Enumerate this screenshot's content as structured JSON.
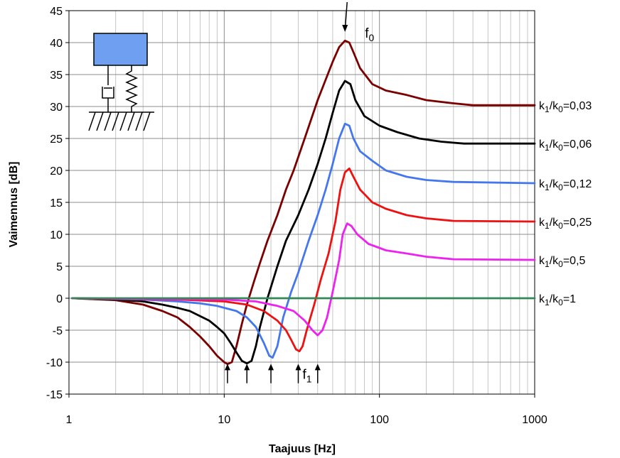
{
  "chart_data": {
    "type": "line",
    "title": "",
    "xlabel": "Taajuus [Hz]",
    "ylabel": "Vaimennus [dB]",
    "xscale": "log",
    "xlim": [
      1,
      1000
    ],
    "ylim": [
      -15,
      45
    ],
    "grid": true,
    "x_ticks": [
      "1",
      "10",
      "100",
      "1000"
    ],
    "y_ticks": [
      "45",
      "40",
      "35",
      "30",
      "25",
      "20",
      "15",
      "10",
      "5",
      "0",
      "-5",
      "-10",
      "-15"
    ],
    "series": [
      {
        "name": "k1/k0=0,03",
        "label_base": "k",
        "label_sub1": "1",
        "label_mid": "/k",
        "label_sub2": "0",
        "label_tail": "=0,03",
        "color": "#7b0000",
        "points": [
          [
            1.05,
            0
          ],
          [
            2,
            -0.3
          ],
          [
            3,
            -1
          ],
          [
            4,
            -2
          ],
          [
            5,
            -3
          ],
          [
            6,
            -4.5
          ],
          [
            7,
            -6
          ],
          [
            8,
            -7.5
          ],
          [
            9,
            -9
          ],
          [
            10,
            -10
          ],
          [
            10.5,
            -10.3
          ],
          [
            11.2,
            -10
          ],
          [
            12,
            -7.5
          ],
          [
            13,
            -4
          ],
          [
            14,
            -1
          ],
          [
            15.5,
            2.5
          ],
          [
            17,
            5.5
          ],
          [
            19,
            9
          ],
          [
            22,
            13
          ],
          [
            25,
            17
          ],
          [
            28,
            20
          ],
          [
            33,
            25
          ],
          [
            40,
            31
          ],
          [
            50,
            37
          ],
          [
            55,
            39.3
          ],
          [
            60,
            40.3
          ],
          [
            64,
            40
          ],
          [
            68,
            38.5
          ],
          [
            75,
            36
          ],
          [
            90,
            33.5
          ],
          [
            110,
            32.5
          ],
          [
            150,
            31.8
          ],
          [
            200,
            31
          ],
          [
            300,
            30.5
          ],
          [
            400,
            30.2
          ],
          [
            1000,
            30.2
          ]
        ]
      },
      {
        "name": "k1/k0=0,06",
        "label_base": "k",
        "label_sub1": "1",
        "label_mid": "/k",
        "label_sub2": "0",
        "label_tail": "=0,06",
        "color": "#000000",
        "points": [
          [
            1.05,
            0
          ],
          [
            2,
            -0.2
          ],
          [
            3,
            -0.5
          ],
          [
            4,
            -1
          ],
          [
            5,
            -1.5
          ],
          [
            6,
            -2
          ],
          [
            7,
            -2.8
          ],
          [
            8,
            -3.5
          ],
          [
            9,
            -4.5
          ],
          [
            10,
            -5.5
          ],
          [
            11,
            -7
          ],
          [
            12,
            -8.5
          ],
          [
            13,
            -9.8
          ],
          [
            14,
            -10.2
          ],
          [
            15,
            -9.8
          ],
          [
            16,
            -7.5
          ],
          [
            17,
            -4.5
          ],
          [
            19,
            0
          ],
          [
            22,
            5
          ],
          [
            25,
            9
          ],
          [
            30,
            13
          ],
          [
            35,
            17
          ],
          [
            40,
            21
          ],
          [
            45,
            25
          ],
          [
            50,
            29
          ],
          [
            55,
            32.5
          ],
          [
            60,
            34
          ],
          [
            65,
            33.5
          ],
          [
            70,
            31
          ],
          [
            80,
            28.5
          ],
          [
            100,
            27
          ],
          [
            130,
            26
          ],
          [
            180,
            25
          ],
          [
            250,
            24.5
          ],
          [
            350,
            24.2
          ],
          [
            1000,
            24.2
          ]
        ]
      },
      {
        "name": "k1/k0=0,12",
        "label_base": "k",
        "label_sub1": "1",
        "label_mid": "/k",
        "label_sub2": "0",
        "label_tail": "=0,12",
        "color": "#4477ee",
        "points": [
          [
            1.05,
            0
          ],
          [
            3,
            -0.2
          ],
          [
            5,
            -0.5
          ],
          [
            7,
            -0.8
          ],
          [
            9,
            -1.2
          ],
          [
            10,
            -1.5
          ],
          [
            12,
            -2
          ],
          [
            14,
            -3
          ],
          [
            16,
            -4.5
          ],
          [
            18,
            -7
          ],
          [
            19.5,
            -9
          ],
          [
            20.5,
            -9.3
          ],
          [
            22,
            -7.5
          ],
          [
            24,
            -3
          ],
          [
            27,
            1
          ],
          [
            30,
            4
          ],
          [
            35,
            9
          ],
          [
            40,
            13
          ],
          [
            45,
            17
          ],
          [
            50,
            21
          ],
          [
            55,
            25
          ],
          [
            60,
            27.3
          ],
          [
            64,
            27
          ],
          [
            68,
            25
          ],
          [
            75,
            23
          ],
          [
            90,
            21.5
          ],
          [
            110,
            20
          ],
          [
            150,
            19
          ],
          [
            200,
            18.5
          ],
          [
            300,
            18.2
          ],
          [
            1000,
            18
          ]
        ]
      },
      {
        "name": "k1/k0=0,25",
        "label_base": "k",
        "label_sub1": "1",
        "label_mid": "/k",
        "label_sub2": "0",
        "label_tail": "=0,25",
        "color": "#ee1111",
        "points": [
          [
            1.05,
            0
          ],
          [
            5,
            -0.2
          ],
          [
            10,
            -0.5
          ],
          [
            14,
            -1
          ],
          [
            18,
            -2
          ],
          [
            22,
            -3.5
          ],
          [
            25,
            -5
          ],
          [
            27,
            -6.5
          ],
          [
            29,
            -8
          ],
          [
            30.5,
            -8.3
          ],
          [
            32,
            -7.5
          ],
          [
            34,
            -5
          ],
          [
            38,
            -1
          ],
          [
            42,
            3
          ],
          [
            47,
            7
          ],
          [
            52,
            12
          ],
          [
            56,
            17
          ],
          [
            60,
            19.7
          ],
          [
            64,
            20.3
          ],
          [
            68,
            19
          ],
          [
            75,
            17
          ],
          [
            90,
            15
          ],
          [
            110,
            14
          ],
          [
            150,
            13
          ],
          [
            200,
            12.5
          ],
          [
            300,
            12.1
          ],
          [
            1000,
            12
          ]
        ]
      },
      {
        "name": "k1/k0=0,5",
        "label_base": "k",
        "label_sub1": "1",
        "label_mid": "/k",
        "label_sub2": "0",
        "label_tail": "=0,5",
        "color": "#ee22ee",
        "points": [
          [
            1.05,
            0
          ],
          [
            10,
            -0.2
          ],
          [
            16,
            -0.5
          ],
          [
            22,
            -1.2
          ],
          [
            28,
            -2
          ],
          [
            33,
            -3.5
          ],
          [
            37,
            -5
          ],
          [
            40,
            -5.8
          ],
          [
            43,
            -5
          ],
          [
            46,
            -3
          ],
          [
            50,
            1
          ],
          [
            55,
            6
          ],
          [
            58,
            10
          ],
          [
            62,
            11.7
          ],
          [
            66,
            11.3
          ],
          [
            72,
            10
          ],
          [
            85,
            8.5
          ],
          [
            110,
            7.5
          ],
          [
            150,
            7
          ],
          [
            200,
            6.5
          ],
          [
            300,
            6.1
          ],
          [
            1000,
            6
          ]
        ]
      },
      {
        "name": "k1/k0=1",
        "label_base": "k",
        "label_sub1": "1",
        "label_mid": "/k",
        "label_sub2": "0",
        "label_tail": "=1",
        "color": "#338855",
        "points": [
          [
            1.05,
            0
          ],
          [
            1000,
            0
          ]
        ]
      }
    ],
    "annotations": {
      "f0_base": "f",
      "f0_sub": "0",
      "f0_x": 60,
      "f1_base": "f",
      "f1_sub": "1",
      "f1_x": 30,
      "minimum_arrows_x": [
        10.5,
        14,
        20,
        30,
        40
      ]
    }
  }
}
